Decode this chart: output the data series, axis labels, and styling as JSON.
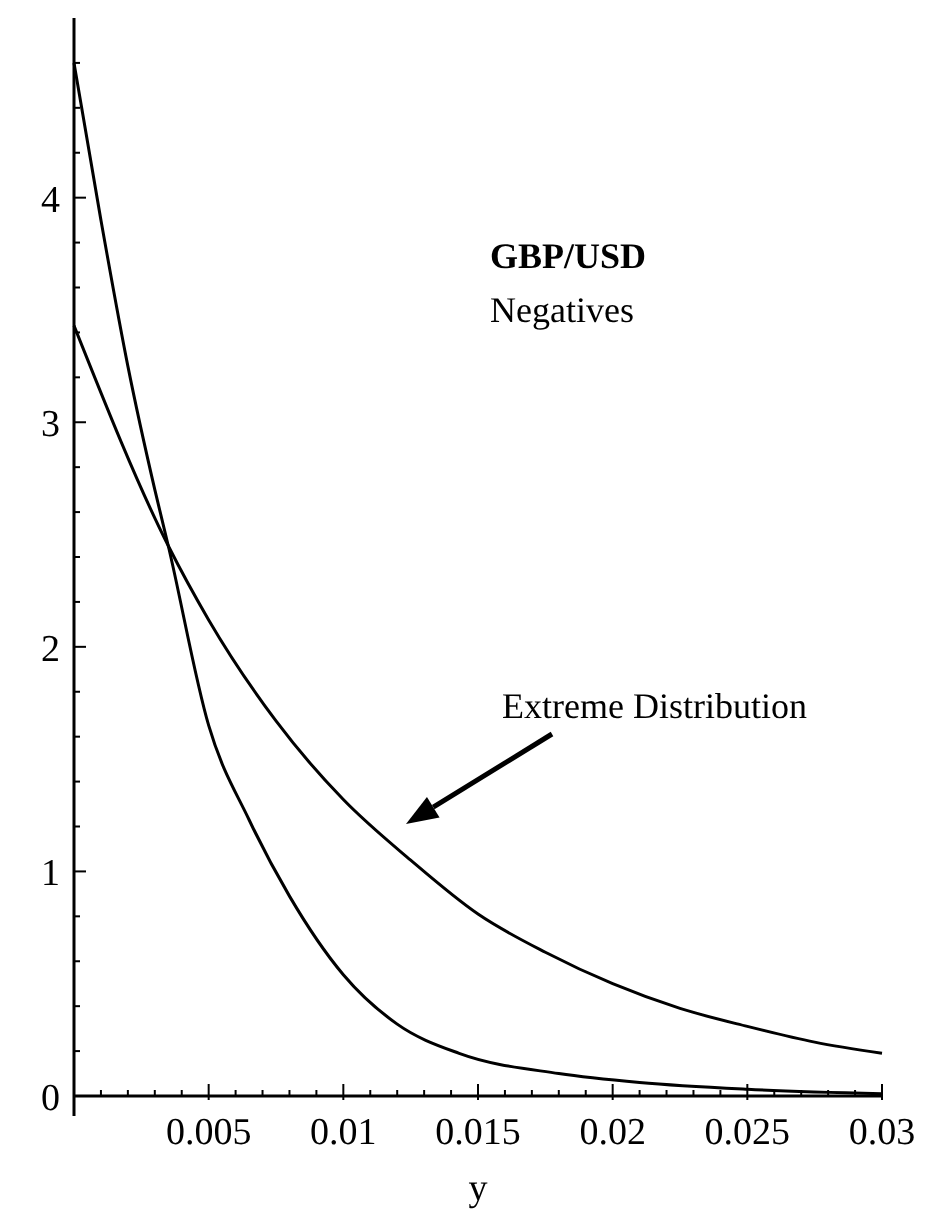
{
  "chart_data": {
    "type": "line",
    "title": "GBP/USD",
    "subtitle": "Negatives",
    "xlabel": "y",
    "annotations": [
      "Extreme Distribution"
    ],
    "xlim": [
      0,
      0.03
    ],
    "ylim": [
      0,
      4.8
    ],
    "xticks": [
      {
        "value": 0.001,
        "label": null
      },
      {
        "value": 0.002,
        "label": null
      },
      {
        "value": 0.003,
        "label": null
      },
      {
        "value": 0.004,
        "label": null
      },
      {
        "value": 0.005,
        "label": "0.005"
      },
      {
        "value": 0.006,
        "label": null
      },
      {
        "value": 0.007,
        "label": null
      },
      {
        "value": 0.008,
        "label": null
      },
      {
        "value": 0.009,
        "label": null
      },
      {
        "value": 0.01,
        "label": "0.01"
      },
      {
        "value": 0.011,
        "label": null
      },
      {
        "value": 0.012,
        "label": null
      },
      {
        "value": 0.013,
        "label": null
      },
      {
        "value": 0.014,
        "label": null
      },
      {
        "value": 0.015,
        "label": "0.015"
      },
      {
        "value": 0.016,
        "label": null
      },
      {
        "value": 0.017,
        "label": null
      },
      {
        "value": 0.018,
        "label": null
      },
      {
        "value": 0.019,
        "label": null
      },
      {
        "value": 0.02,
        "label": "0.02"
      },
      {
        "value": 0.021,
        "label": null
      },
      {
        "value": 0.022,
        "label": null
      },
      {
        "value": 0.023,
        "label": null
      },
      {
        "value": 0.024,
        "label": null
      },
      {
        "value": 0.025,
        "label": "0.025"
      },
      {
        "value": 0.026,
        "label": null
      },
      {
        "value": 0.027,
        "label": null
      },
      {
        "value": 0.028,
        "label": null
      },
      {
        "value": 0.029,
        "label": null
      },
      {
        "value": 0.03,
        "label": "0.03"
      }
    ],
    "yticks": [
      0,
      {
        "value": 0.2,
        "label": null
      },
      {
        "value": 0.4,
        "label": null
      },
      {
        "value": 0.6,
        "label": null
      },
      {
        "value": 0.8,
        "label": null
      },
      1,
      {
        "value": 1.2,
        "label": null
      },
      {
        "value": 1.4,
        "label": null
      },
      {
        "value": 1.6,
        "label": null
      },
      {
        "value": 1.8,
        "label": null
      },
      2,
      {
        "value": 2.2,
        "label": null
      },
      {
        "value": 2.4,
        "label": null
      },
      {
        "value": 2.6,
        "label": null
      },
      {
        "value": 2.8,
        "label": null
      },
      3,
      {
        "value": 3.2,
        "label": null
      },
      {
        "value": 3.4,
        "label": null
      },
      {
        "value": 3.6,
        "label": null
      },
      {
        "value": 3.8,
        "label": null
      },
      4,
      {
        "value": 4.2,
        "label": null
      },
      {
        "value": 4.4,
        "label": null
      },
      {
        "value": 4.6,
        "label": null
      }
    ],
    "grid": false,
    "marker": "none",
    "line_style": "solid",
    "series": [
      {
        "color": "#000000",
        "x": [
          0,
          0.001,
          0.002,
          0.003,
          0.0035,
          0.005,
          0.0065,
          0.008,
          0.01,
          0.012,
          0.0143,
          0.018,
          0.021,
          0.025,
          0.03
        ],
        "values": [
          4.6,
          3.9,
          3.25,
          2.7,
          2.45,
          1.65,
          1.23,
          0.89,
          0.54,
          0.32,
          0.19,
          0.1,
          0.06,
          0.03,
          0.01
        ]
      },
      {
        "color": "#000000",
        "x": [
          0,
          0.0035,
          0.005,
          0.0075,
          0.01,
          0.0125,
          0.015,
          0.0175,
          0.02,
          0.0225,
          0.025,
          0.0275,
          0.03
        ],
        "values": [
          3.43,
          2.45,
          2.12,
          1.67,
          1.32,
          1.05,
          0.81,
          0.64,
          0.5,
          0.39,
          0.31,
          0.24,
          0.19
        ]
      }
    ]
  }
}
